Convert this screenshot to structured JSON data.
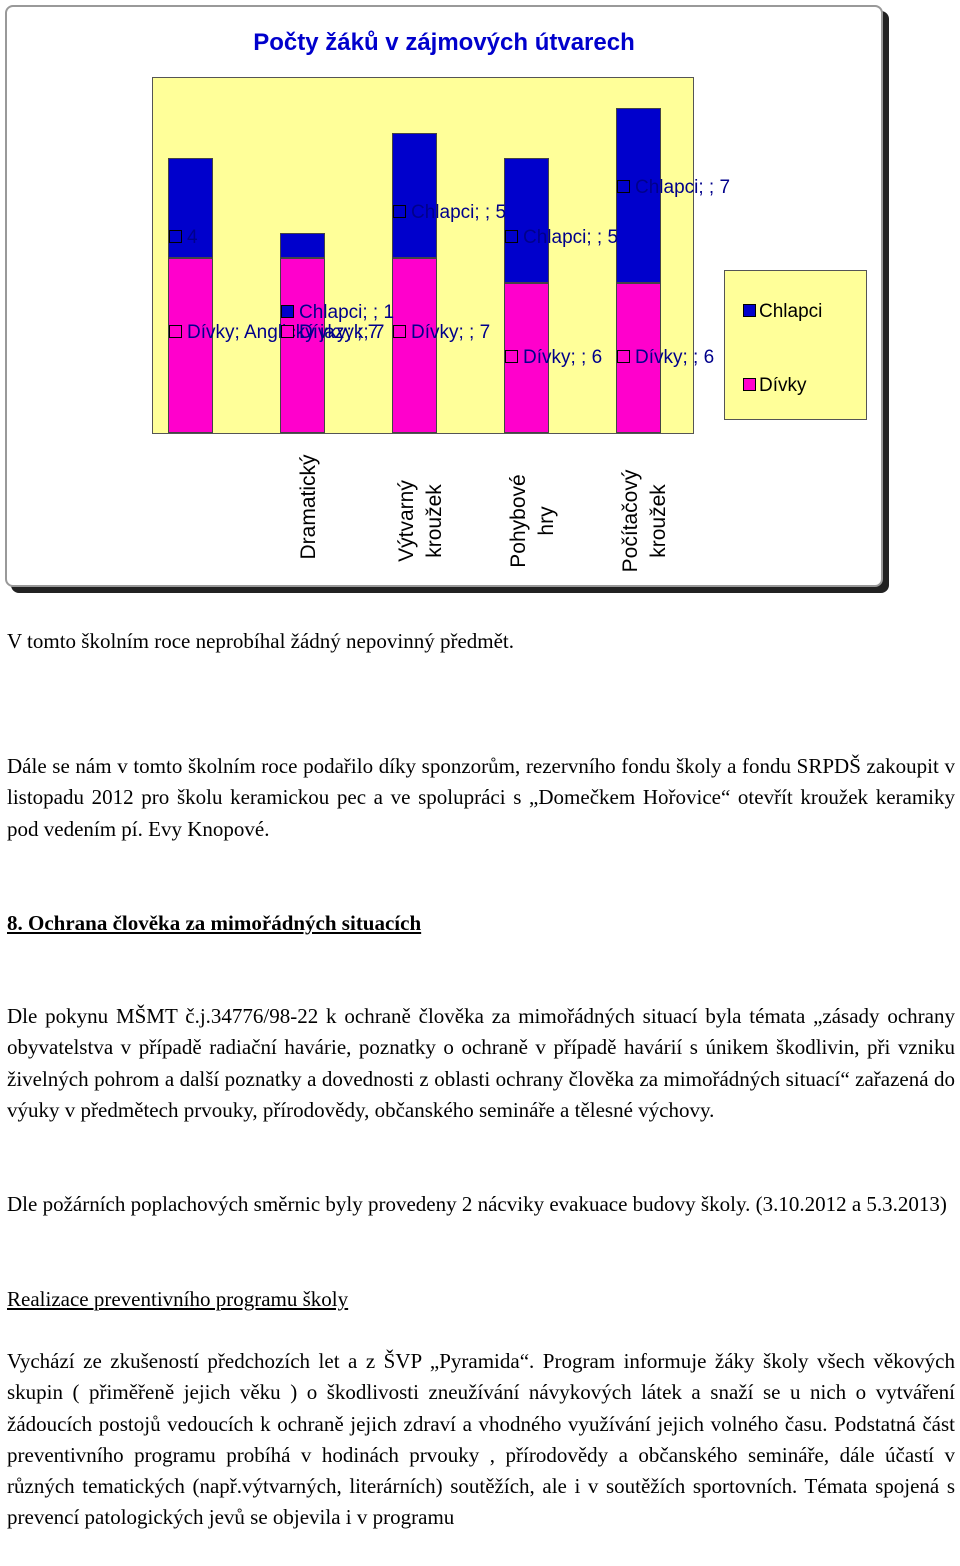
{
  "chart_data": {
    "type": "bar",
    "stacked": true,
    "title": "Počty žáků v zájmových útvarech",
    "categories": [
      null,
      "Dramatický",
      "Výtvarný kroužek",
      "Pohybové hry",
      "Počítačový kroužek"
    ],
    "series": [
      {
        "name": "Dívky",
        "color": "#ff00cc",
        "values": [
          7,
          7,
          7,
          6,
          6
        ],
        "value_labels": [
          "Dívky; Anglický jazyk; 7",
          "Dívky; ; 7",
          "Dívky; ; 7",
          "Dívky; ; 6",
          "Dívky; ; 6"
        ]
      },
      {
        "name": "Chlapci",
        "color": "#0000cc",
        "values": [
          4,
          1,
          5,
          5,
          7
        ],
        "value_labels": [
          "4",
          "Chlapci; ; 1",
          "Chlapci; ; 5",
          "Chlapci; ; 5",
          "Chlapci; ; 7"
        ]
      }
    ]
  },
  "document": {
    "paragraphs": [
      "V tomto školním roce neprobíhal žádný nepovinný předmět.",
      "Dále se nám v tomto školním roce podařilo díky sponzorům, rezervního fondu školy a fondu SRPDŠ zakoupit v listopadu 2012 pro školu keramickou pec a ve spolupráci s „Domečkem Hořovice“ otevřít kroužek keramiky pod vedením pí. Evy Knopové.",
      "8. Ochrana člověka za mimořádných situacích",
      "Dle pokynu MŠMT č.j.34776/98-22 k ochraně člověka za mimořádných situací byla témata „zásady ochrany obyvatelstva v případě radiační havárie, poznatky o ochraně v případě havárií s únikem škodlivin, při vzniku živelných pohrom a další poznatky a dovednosti z oblasti ochrany člověka za mimořádných situací“ zařazená do výuky v předmětech prvouky, přírodovědy, občanského semináře a tělesné výchovy.",
      "Dle požárních poplachových směrnic byly provedeny 2 nácviky evakuace budovy školy. (3.10.2012 a 5.3.2013)",
      "Realizace preventivního programu školy",
      "Vychází ze zkušeností předchozích let a z ŠVP „Pyramida“. Program informuje žáky školy všech věkových skupin ( přiměřeně jejich věku ) o škodlivosti zneužívání návykových látek a snaží se u nich o vytváření žádoucích postojů vedoucích k ochraně jejich zdraví a vhodného využívání jejich volného času. Podstatná část preventivního programu probíhá v hodinách prvouky , přírodovědy a občanského semináře, dále účastí v různých tematických (např.výtvarných, literárních) soutěžích, ale i v soutěžích sportovních. Témata spojená s prevencí patologických jevů se objevila i v programu"
    ]
  }
}
